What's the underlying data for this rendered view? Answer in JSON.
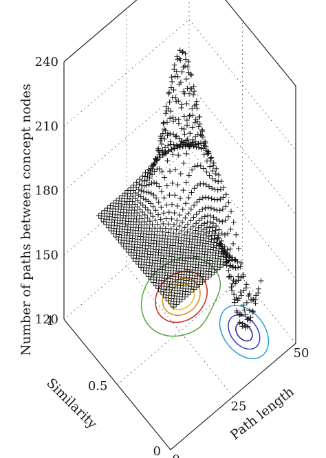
{
  "chart_data": {
    "type": "surface3d",
    "title": "",
    "zlabel": "Number of paths between concept nodes",
    "ylabel": "Similarity",
    "xlabel": "Path length",
    "zticks": [
      120,
      150,
      180,
      210,
      240
    ],
    "yticks": [
      0,
      0.5,
      1
    ],
    "xticks": [
      0,
      25,
      50
    ],
    "zlim": [
      120,
      240
    ],
    "ylim": [
      0,
      1
    ],
    "xlim": [
      0,
      50
    ],
    "grid": true,
    "marker": "+",
    "surface": {
      "base_level": 170,
      "peak": {
        "x": 32,
        "y": 0.65,
        "z": 235
      },
      "valley": {
        "x": 40,
        "y": 0.25,
        "z": 122
      }
    },
    "contour_levels": [
      {
        "level": 215,
        "color": "#e8c020"
      },
      {
        "level": 200,
        "color": "#e08a18"
      },
      {
        "level": 185,
        "color": "#d42a1a"
      },
      {
        "level": 172,
        "color": "#5aa848"
      },
      {
        "level": 160,
        "color": "#30a0d8"
      },
      {
        "level": 145,
        "color": "#3048c8"
      },
      {
        "level": 130,
        "color": "#2a2088"
      }
    ]
  }
}
